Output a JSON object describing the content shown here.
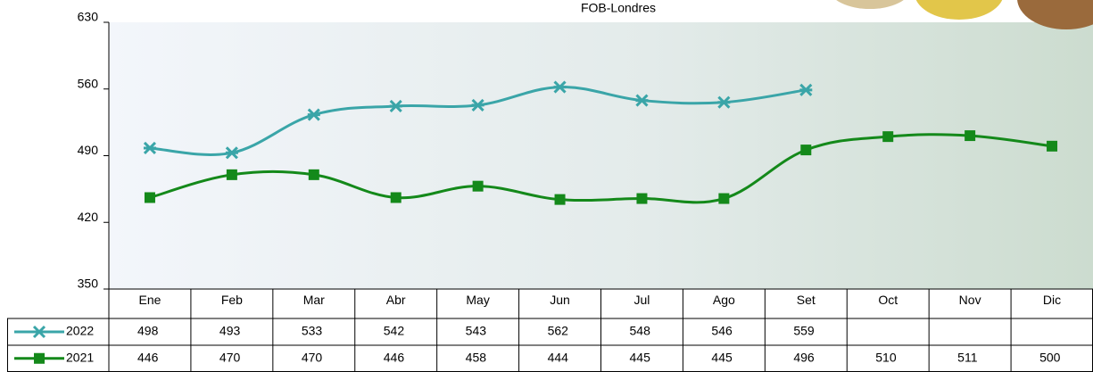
{
  "chart_data": {
    "type": "line",
    "title": "FOB-Londres",
    "categories": [
      "Ene",
      "Feb",
      "Mar",
      "Abr",
      "May",
      "Jun",
      "Jul",
      "Ago",
      "Set",
      "Oct",
      "Nov",
      "Dic"
    ],
    "series": [
      {
        "name": "2022",
        "color": "#3aa5a8",
        "marker": "x",
        "values": [
          498,
          493,
          533,
          542,
          543,
          562,
          548,
          546,
          559,
          null,
          null,
          null
        ]
      },
      {
        "name": "2021",
        "color": "#14891a",
        "marker": "square",
        "values": [
          446,
          470,
          470,
          446,
          458,
          444,
          445,
          445,
          496,
          510,
          511,
          500
        ]
      }
    ],
    "ylim": [
      350,
      630
    ],
    "yticks": [
      350,
      420,
      490,
      560,
      630
    ],
    "grid": false,
    "smooth": true,
    "data_table": true
  }
}
